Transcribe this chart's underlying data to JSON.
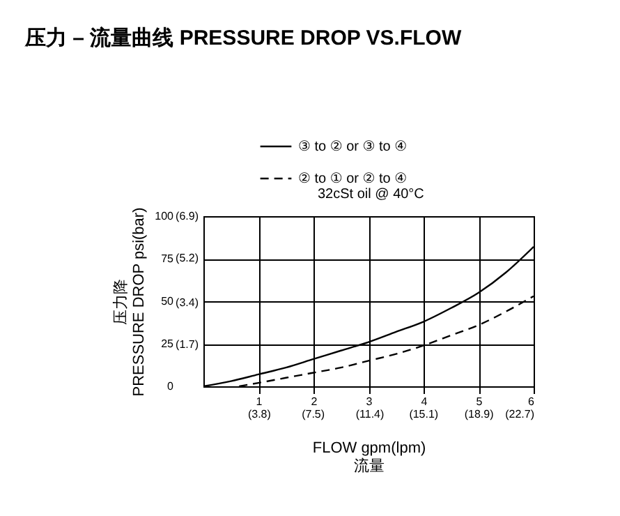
{
  "chart_data": {
    "type": "line",
    "title": "压力 – 流量曲线 PRESSURE DROP VS.FLOW",
    "xlabel": "FLOW gpm(lpm)\n流量",
    "ylabel": "压力降\nPRESSURE DROP psi(bar)",
    "annotations": [
      "32cSt oil @ 40°C"
    ],
    "series": [
      {
        "name": "③ to ② or ③ to ④",
        "color": "#000000",
        "line_style": "solid",
        "x": [
          0,
          0.5,
          1,
          1.5,
          2,
          2.5,
          3,
          3.5,
          4,
          4.5,
          5,
          5.5,
          6
        ],
        "values": [
          0,
          3,
          7,
          11,
          16,
          21,
          26,
          32,
          38,
          46,
          55,
          67,
          82
        ]
      },
      {
        "name": "② to ① or ② to ④",
        "color": "#000000",
        "line_style": "dashed",
        "x": [
          0.65,
          1,
          1.5,
          2,
          2.5,
          3,
          3.5,
          4,
          4.5,
          5,
          5.5,
          6
        ],
        "values": [
          0,
          2,
          5,
          8,
          11,
          15,
          19,
          24,
          30,
          36,
          44,
          53
        ]
      }
    ],
    "xlim": [
      0,
      6
    ],
    "xticks": [
      1,
      2,
      3,
      4,
      5,
      6
    ],
    "x2lim": [
      0,
      22.7
    ],
    "x2ticks": [
      {
        "value": 3.8,
        "label": "(3.8)"
      },
      {
        "value": 7.5,
        "label": "(7.5)"
      },
      {
        "value": 11.4,
        "label": "(11.4)"
      },
      {
        "value": 15.1,
        "label": "(15.1)"
      },
      {
        "value": 18.9,
        "label": "(18.9)"
      },
      {
        "value": 22.7,
        "label": "(22.7)"
      }
    ],
    "ylim": [
      0,
      100
    ],
    "yticks": [
      0,
      25,
      50,
      75,
      100
    ],
    "y2lim": [
      0,
      6.9
    ],
    "y2ticks": [
      {
        "value": 1.7,
        "label": "(1.7)"
      },
      {
        "value": 3.4,
        "label": "(3.4)"
      },
      {
        "value": 5.2,
        "label": "(5.2)"
      },
      {
        "value": 6.9,
        "label": "(6.9)"
      }
    ],
    "grid": true,
    "legend": "top",
    "marker": "none"
  }
}
